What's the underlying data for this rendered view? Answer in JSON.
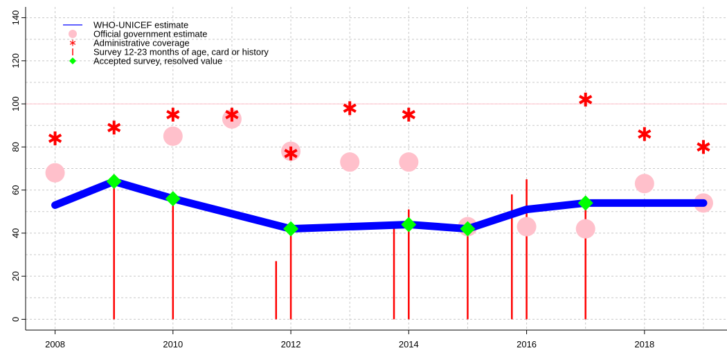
{
  "chart_data": {
    "type": "line",
    "title": "",
    "xlabel": "",
    "ylabel": "",
    "xlim": [
      2007.5,
      2019.4
    ],
    "ylim": [
      -5,
      145
    ],
    "x_ticks": [
      2008,
      2010,
      2012,
      2014,
      2016,
      2018
    ],
    "y_ticks": [
      0,
      20,
      40,
      60,
      80,
      100,
      120,
      140
    ],
    "reference_line": 100,
    "grid": true,
    "legend_position": "top-left",
    "colors": {
      "estimate": "#0000ff",
      "government": "#ffc0cb",
      "admin": "#ff0000",
      "survey": "#ff0000",
      "accepted": "#00ff00",
      "reference": "#ffc0cb",
      "grid": "#c8c8c8"
    },
    "legend": [
      {
        "key": "estimate",
        "label": "WHO-UNICEF estimate"
      },
      {
        "key": "government",
        "label": "Official government estimate"
      },
      {
        "key": "admin",
        "label": "Administrative coverage"
      },
      {
        "key": "survey",
        "label": "Survey 12-23 months of age, card or history"
      },
      {
        "key": "accepted",
        "label": "Accepted survey, resolved value"
      }
    ],
    "series": [
      {
        "key": "estimate",
        "x": [
          2008,
          2009,
          2010,
          2011,
          2012,
          2013,
          2014,
          2015,
          2016,
          2017,
          2018,
          2019
        ],
        "values": [
          53,
          64,
          56,
          49,
          42,
          43,
          44,
          42,
          51,
          54,
          54,
          54
        ]
      },
      {
        "key": "government",
        "x": [
          2008,
          2010,
          2011,
          2012,
          2013,
          2014,
          2015,
          2016,
          2017,
          2018,
          2019
        ],
        "values": [
          68,
          85,
          93,
          78,
          73,
          73,
          43,
          43,
          42,
          63,
          54
        ]
      },
      {
        "key": "admin",
        "x": [
          2008,
          2009,
          2010,
          2011,
          2012,
          2013,
          2014,
          2017,
          2018,
          2019
        ],
        "values": [
          84,
          89,
          95,
          95,
          77,
          98,
          95,
          102,
          86,
          80
        ]
      },
      {
        "key": "survey",
        "x": [
          2009,
          2010,
          2011.75,
          2012,
          2013.75,
          2014,
          2015,
          2015.75,
          2016,
          2017
        ],
        "values": [
          62,
          57,
          27,
          42,
          44,
          51,
          43,
          58,
          65,
          54
        ]
      },
      {
        "key": "accepted",
        "x": [
          2009,
          2010,
          2012,
          2014,
          2015,
          2017
        ],
        "values": [
          64,
          56,
          42,
          44,
          42,
          54
        ]
      }
    ]
  }
}
